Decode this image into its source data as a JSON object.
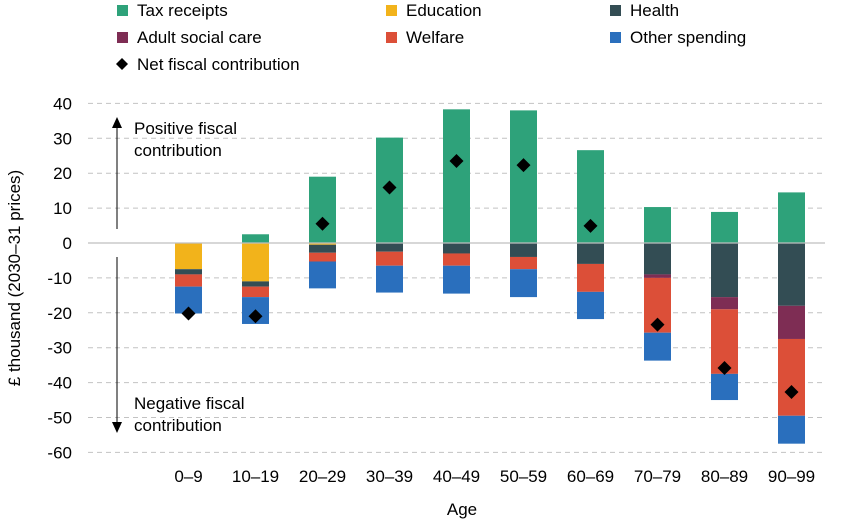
{
  "chart_data": {
    "type": "bar",
    "stacked": true,
    "title": "",
    "xlabel": "Age",
    "ylabel": "£ thousand (2030–31 prices)",
    "ylim": [
      -60,
      40
    ],
    "yticks": [
      40,
      30,
      20,
      10,
      0,
      -10,
      -20,
      -30,
      -40,
      -50,
      -60
    ],
    "grid": true,
    "legend_position": "top",
    "categories": [
      "0–9",
      "10–19",
      "20–29",
      "30–39",
      "40–49",
      "50–59",
      "60–69",
      "70–79",
      "80–89",
      "90–99"
    ],
    "series": [
      {
        "name": "Tax receipts",
        "color": "#2ea27a",
        "values": [
          0,
          2.5,
          19,
          30.2,
          38.3,
          38,
          26.6,
          10.3,
          8.9,
          14.5
        ]
      },
      {
        "name": "Education",
        "color": "#f2b31b",
        "values": [
          -7.5,
          -11,
          -0.5,
          0,
          0,
          0,
          0,
          0,
          0,
          0
        ]
      },
      {
        "name": "Health",
        "color": "#334d54",
        "values": [
          -1.5,
          -1.5,
          -2.3,
          -2.5,
          -3,
          -4,
          -6,
          -9,
          -15.5,
          -18
        ]
      },
      {
        "name": "Adult social care",
        "color": "#7e2d54",
        "values": [
          0,
          0,
          0,
          0,
          0,
          0,
          0,
          -1,
          -3.5,
          -9.5
        ]
      },
      {
        "name": "Welfare",
        "color": "#dc4f38",
        "values": [
          -3.5,
          -3,
          -2.5,
          -4,
          -3.5,
          -3.5,
          -8,
          -15.7,
          -18.5,
          -22
        ]
      },
      {
        "name": "Other spending",
        "color": "#2a6fbd",
        "values": [
          -7.7,
          -7.7,
          -7.7,
          -7.7,
          -8,
          -8,
          -7.8,
          -8,
          -7.5,
          -8
        ]
      }
    ],
    "net_series": {
      "name": "Net fiscal contribution",
      "color": "#000000",
      "values": [
        -20.2,
        -21,
        5.5,
        15.9,
        23.5,
        22.3,
        4.9,
        -23.4,
        -35.8,
        -42.7
      ]
    },
    "annotations": {
      "positive": [
        "Positive fiscal",
        "contribution"
      ],
      "negative": [
        "Negative fiscal",
        "contribution"
      ]
    }
  }
}
